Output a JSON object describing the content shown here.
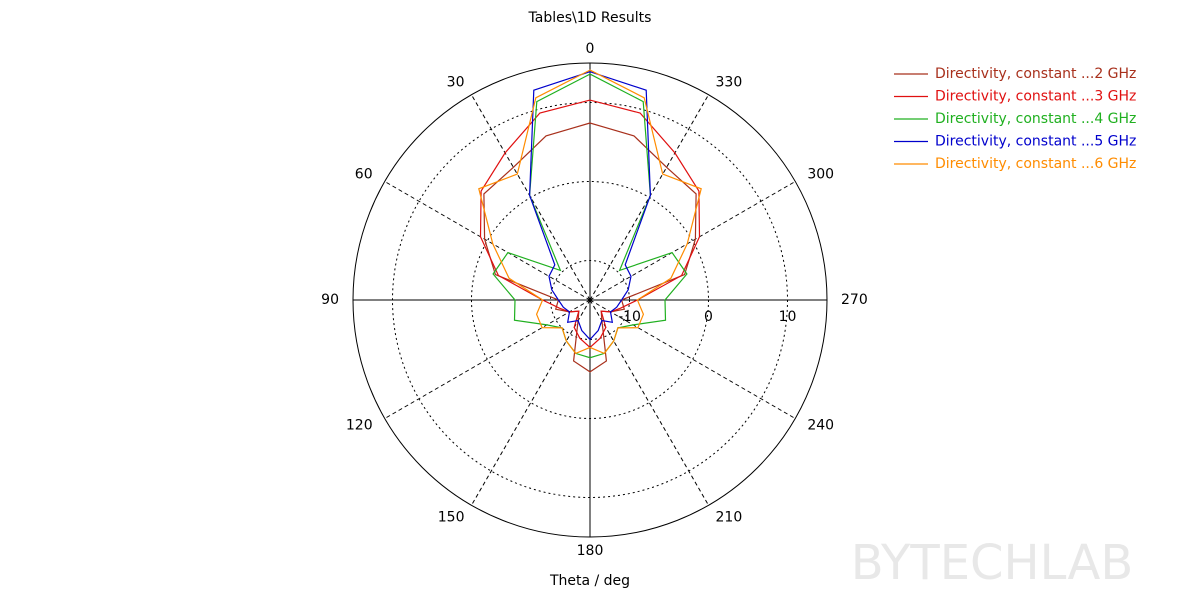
{
  "chart_data": {
    "type": "polar",
    "title": "Tables\\1D Results",
    "xlabel": "Theta / deg",
    "theta": [
      0,
      15,
      30,
      45,
      60,
      75,
      90,
      105,
      120,
      135,
      150,
      165,
      180,
      195,
      210,
      225,
      240,
      255,
      270,
      285,
      300,
      315,
      330,
      345
    ],
    "series": [
      {
        "name": "Directivity, constant ...2 GHz",
        "color": "#a8301c",
        "values": [
          7.4,
          6.5,
          4.4,
          4.0,
          0.4,
          -2.6,
          -11,
          -10.5,
          -12,
          -13,
          -12,
          -7,
          -5.9,
          -7,
          -12,
          -13,
          -12,
          -10.5,
          -11,
          -2.6,
          0.4,
          4.0,
          4.4,
          6.5
        ]
      },
      {
        "name": "Directivity, constant ...3 GHz",
        "color": "#e01010",
        "values": [
          10.3,
          9.5,
          6.5,
          4.5,
          1.0,
          -3,
          -9,
          -11,
          -12,
          -13,
          -11,
          -10,
          -9,
          -10,
          -11,
          -13,
          -12,
          -11,
          -9,
          -3,
          1.0,
          4.5,
          6.5,
          9.5
        ]
      },
      {
        "name": "Directivity, constant ...4 GHz",
        "color": "#20b020",
        "values": [
          13.6,
          11,
          0.3,
          -9.7,
          -3,
          -2.3,
          -5.5,
          -5.1,
          -8.7,
          -10,
          -9,
          -8,
          -7.7,
          -8,
          -9,
          -10,
          -8.7,
          -5.1,
          -5.5,
          -2.3,
          -3,
          -9.7,
          0.3,
          11
        ]
      },
      {
        "name": "Directivity, constant ...5 GHz",
        "color": "#0000cc",
        "values": [
          13.9,
          12.5,
          0.3,
          -8.7,
          -9,
          -10,
          -11,
          -11.5,
          -12,
          -11,
          -12,
          -11,
          -10,
          -11,
          -12,
          -11,
          -12,
          -11.5,
          -11,
          -10,
          -9,
          -8.7,
          0.3,
          12.5
        ]
      },
      {
        "name": "Directivity, constant ...6 GHz",
        "color": "#ff8c00",
        "values": [
          14.1,
          11.5,
          3.4,
          4.9,
          -0.8,
          -4.4,
          -9,
          -8,
          -8,
          -10,
          -9,
          -8,
          -9,
          -8,
          -9,
          -10,
          -8,
          -8,
          -9,
          -4.4,
          -0.8,
          4.9,
          3.4,
          11.5
        ]
      }
    ],
    "rlim": [
      -15,
      15
    ],
    "rticks": [
      -10,
      0,
      10
    ],
    "thetaticks": [
      0,
      30,
      60,
      90,
      120,
      150,
      180,
      210,
      240,
      270,
      300,
      330
    ]
  },
  "watermark": "BYTECHLAB"
}
